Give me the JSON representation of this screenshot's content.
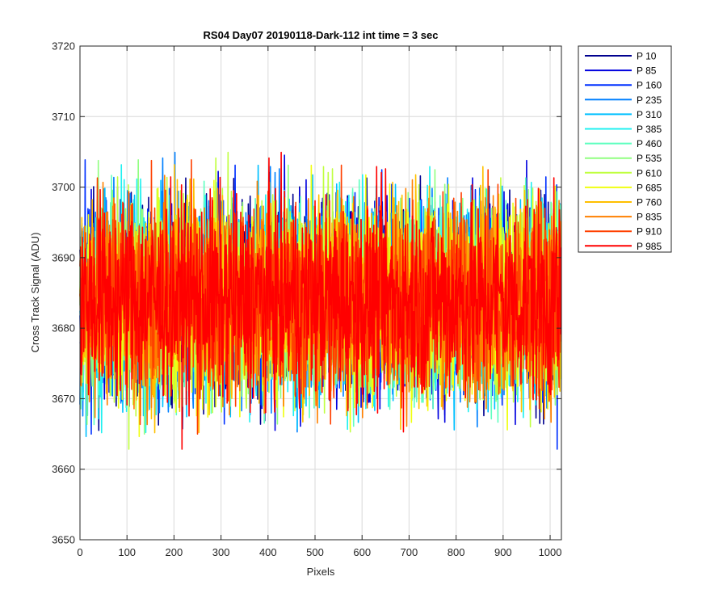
{
  "chart_data": {
    "type": "line",
    "title": "RS04 Day07 20190118-Dark-112 int time = 3 sec",
    "xlabel": "Pixels",
    "ylabel": "Cross Track Signal (ADU)",
    "xlim": [
      0,
      1024
    ],
    "ylim": [
      3650,
      3720
    ],
    "xticks": [
      0,
      100,
      200,
      300,
      400,
      500,
      600,
      700,
      800,
      900,
      1000
    ],
    "yticks": [
      3650,
      3660,
      3670,
      3680,
      3690,
      3700,
      3710,
      3720
    ],
    "grid": true,
    "legend_position": "outside-top-right",
    "n_points": 1024,
    "signal_mean": 3684,
    "signal_spread": 7,
    "series": [
      {
        "name": "P 10",
        "color": "#00008f"
      },
      {
        "name": "P 85",
        "color": "#0000df"
      },
      {
        "name": "P 160",
        "color": "#0030ff"
      },
      {
        "name": "P 235",
        "color": "#0080ff"
      },
      {
        "name": "P 310",
        "color": "#00c0ff"
      },
      {
        "name": "P 385",
        "color": "#20f0f0"
      },
      {
        "name": "P 460",
        "color": "#60ffc0"
      },
      {
        "name": "P 535",
        "color": "#90ff80"
      },
      {
        "name": "P 610",
        "color": "#c0ff40"
      },
      {
        "name": "P 685",
        "color": "#f0ff10"
      },
      {
        "name": "P 760",
        "color": "#ffc000"
      },
      {
        "name": "P 835",
        "color": "#ff8000"
      },
      {
        "name": "P 910",
        "color": "#ff4000"
      },
      {
        "name": "P 985",
        "color": "#ff0000"
      }
    ]
  }
}
